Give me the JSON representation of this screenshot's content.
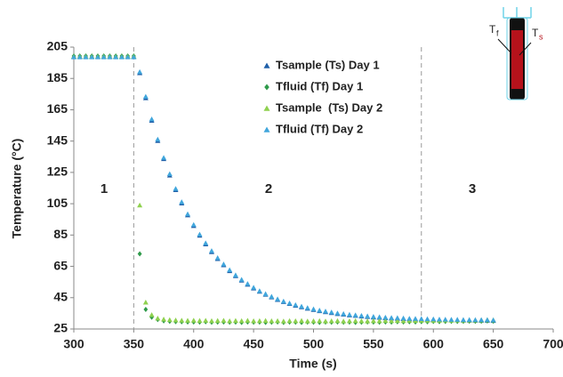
{
  "chart_data": {
    "type": "scatter",
    "xlabel": "Time (s)",
    "ylabel": "Temperature (°C)",
    "xlim": [
      300,
      700
    ],
    "ylim": [
      25,
      205
    ],
    "xticks": [
      300,
      350,
      400,
      450,
      500,
      550,
      600,
      650,
      700
    ],
    "yticks": [
      25,
      45,
      65,
      85,
      105,
      125,
      145,
      165,
      185,
      205
    ],
    "grid": false,
    "legend": "top",
    "vlines": [
      350,
      590
    ],
    "regions": [
      "1",
      "2",
      "3"
    ],
    "inset_labels": [
      {
        "text": "T",
        "sub": "f"
      },
      {
        "text": "T",
        "sub": "s"
      }
    ],
    "x": [
      300,
      305,
      310,
      315,
      320,
      325,
      330,
      335,
      340,
      345,
      350,
      355,
      360,
      365,
      370,
      375,
      380,
      385,
      390,
      395,
      400,
      405,
      410,
      415,
      420,
      425,
      430,
      435,
      440,
      445,
      450,
      455,
      460,
      465,
      470,
      475,
      480,
      485,
      490,
      495,
      500,
      505,
      510,
      515,
      520,
      525,
      530,
      535,
      540,
      545,
      550,
      555,
      560,
      565,
      570,
      575,
      580,
      585,
      590,
      595,
      600,
      605,
      610,
      615,
      620,
      625,
      630,
      635,
      640,
      645,
      650
    ],
    "series": [
      {
        "name": "Tsample (Ts) Day 1",
        "color": "#1f5fa8",
        "marker": "triangle",
        "values": [
          199,
          199,
          199,
          199,
          199,
          199,
          199,
          199,
          199,
          199,
          199,
          188.5,
          172.5,
          158.1,
          145.2,
          133.6,
          123.1,
          113.8,
          105.3,
          97.7,
          90.9,
          84.7,
          79.2,
          74.2,
          69.8,
          65.8,
          62.1,
          58.9,
          56.0,
          53.4,
          51.0,
          48.9,
          47.0,
          45.3,
          43.7,
          42.3,
          41.1,
          40.0,
          39.0,
          38.1,
          37.3,
          36.5,
          35.9,
          35.3,
          34.7,
          34.3,
          33.8,
          33.5,
          33.1,
          32.8,
          32.5,
          32.3,
          32.0,
          31.8,
          31.7,
          31.5,
          31.3,
          31.2,
          31.1,
          31.0,
          30.9,
          30.8,
          30.7,
          30.6,
          30.6,
          30.5,
          30.5,
          30.4,
          30.4,
          30.4,
          30.3
        ]
      },
      {
        "name": "Tfluid (Tf) Day 1",
        "color": "#2e9a4a",
        "marker": "diamond",
        "values": [
          199.3,
          199.3,
          199.3,
          199.3,
          199.3,
          199.3,
          199.3,
          199.3,
          199.3,
          199.3,
          199.3,
          73,
          37.5,
          32.5,
          31.0,
          30.2,
          29.9,
          29.7,
          29.6,
          29.5,
          29.5,
          29.4,
          29.6,
          29.3,
          29.4,
          29.5,
          29.3,
          29.4,
          29.2,
          29.5,
          29.3,
          29.4,
          29.2,
          29.3,
          29.5,
          29.2,
          29.4,
          29.3,
          29.2,
          29.4,
          29.3,
          29.2,
          29.4,
          29.3,
          29.5,
          29.3,
          29.4,
          29.2,
          29.3,
          29.5,
          29.4,
          29.3,
          29.5,
          29.4,
          29.6,
          29.5,
          29.6,
          29.5,
          29.7,
          29.6,
          29.8,
          29.7,
          29.8,
          29.9,
          29.8,
          29.9,
          30.0,
          29.9,
          30.0,
          30.1,
          30.0
        ]
      },
      {
        "name": "Tsample  (Ts) Day 2",
        "color": "#8fd14f",
        "marker": "triangle",
        "values": [
          198.9,
          198.9,
          198.9,
          198.9,
          198.9,
          198.9,
          198.9,
          198.9,
          198.9,
          198.9,
          198.9,
          104,
          42,
          34,
          31.8,
          31.2,
          30.8,
          30.6,
          30.5,
          30.4,
          30.5,
          30.3,
          30.4,
          30.2,
          30.3,
          30.4,
          30.1,
          30.3,
          30.2,
          30.4,
          30.1,
          30.2,
          30.3,
          30.1,
          30.2,
          30.0,
          30.2,
          30.1,
          30.3,
          30.0,
          30.1,
          30.2,
          30.0,
          30.1,
          30.2,
          30.0,
          30.1,
          30.2,
          30.1,
          30.0,
          30.2,
          30.1,
          30.3,
          30.2,
          30.3,
          30.2,
          30.4,
          30.3,
          30.4,
          30.5,
          30.4,
          30.5,
          30.6,
          30.5,
          30.6,
          30.6,
          30.7,
          30.6,
          30.7,
          30.8,
          30.7
        ]
      },
      {
        "name": "Tfluid (Tf) Day 2",
        "color": "#41a6dc",
        "marker": "triangle",
        "values": [
          198.6,
          198.6,
          198.6,
          198.6,
          198.6,
          198.6,
          198.6,
          198.6,
          198.6,
          198.6,
          198.6,
          189.2,
          173.4,
          159.0,
          146.1,
          134.4,
          124.0,
          114.6,
          106.1,
          98.4,
          91.6,
          85.4,
          79.9,
          74.9,
          70.4,
          66.4,
          62.7,
          59.4,
          56.5,
          53.9,
          51.5,
          49.3,
          47.4,
          45.7,
          44.1,
          42.7,
          41.5,
          40.4,
          39.4,
          38.5,
          37.7,
          36.9,
          36.3,
          35.7,
          35.1,
          34.7,
          34.2,
          33.9,
          33.5,
          33.2,
          32.9,
          32.7,
          32.4,
          32.2,
          32.1,
          31.9,
          31.7,
          31.6,
          31.5,
          31.4,
          31.3,
          31.2,
          31.1,
          31.0,
          31.0,
          30.9,
          30.9,
          30.8,
          30.8,
          30.8,
          30.7
        ]
      }
    ]
  }
}
